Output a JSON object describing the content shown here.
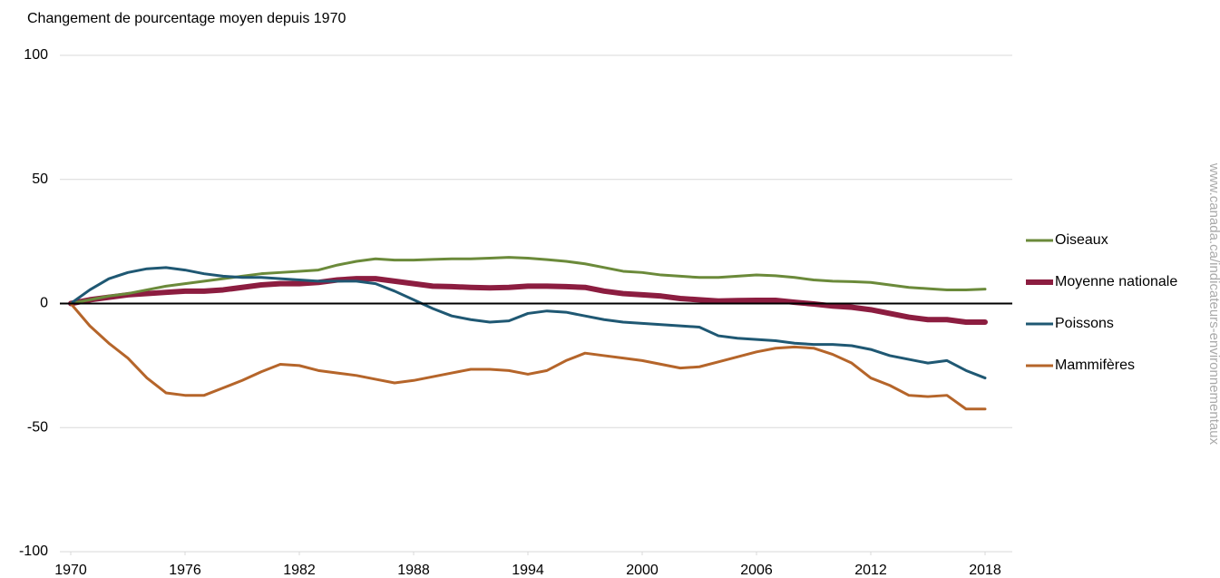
{
  "chart_data": {
    "type": "line",
    "title": "Changement de pourcentage moyen depuis 1970",
    "source": "www.canada.ca/indicateurs-environnementaux",
    "x": [
      1970,
      1971,
      1972,
      1973,
      1974,
      1975,
      1976,
      1977,
      1978,
      1979,
      1980,
      1981,
      1982,
      1983,
      1984,
      1985,
      1986,
      1987,
      1988,
      1989,
      1990,
      1991,
      1992,
      1993,
      1994,
      1995,
      1996,
      1997,
      1998,
      1999,
      2000,
      2001,
      2002,
      2003,
      2004,
      2005,
      2006,
      2007,
      2008,
      2009,
      2010,
      2011,
      2012,
      2013,
      2014,
      2015,
      2016,
      2017,
      2018
    ],
    "xlim": [
      1970,
      2018
    ],
    "xticks": [
      1970,
      1976,
      1982,
      1988,
      1994,
      2000,
      2006,
      2012,
      2018
    ],
    "ylim": [
      -100,
      100
    ],
    "yticks": [
      -100,
      -50,
      0,
      50,
      100
    ],
    "grid": true,
    "legend": "right",
    "series": [
      {
        "name": "Oiseaux",
        "color": "#6b8a3a",
        "line_width": 3,
        "values": [
          0,
          1.5,
          3,
          4,
          5.5,
          7,
          8,
          9,
          10,
          11,
          12,
          12.5,
          13,
          13.5,
          15.5,
          17,
          18,
          17.5,
          17.5,
          17.8,
          18,
          18,
          18.3,
          18.6,
          18.3,
          17.7,
          17,
          16,
          14.5,
          13,
          12.5,
          11.5,
          11,
          10.5,
          10.5,
          11,
          11.5,
          11.2,
          10.5,
          9.5,
          9,
          8.8,
          8.5,
          7.5,
          6.5,
          6,
          5.5,
          5.5,
          5.8
        ]
      },
      {
        "name": "Moyenne nationale",
        "color": "#8c1d40",
        "line_width": 6,
        "values": [
          0,
          1.5,
          2.5,
          3.5,
          4,
          4.5,
          5,
          5,
          5.5,
          6.5,
          7.5,
          8,
          8,
          8.5,
          9.5,
          10,
          10,
          9,
          8,
          7,
          6.8,
          6.5,
          6.3,
          6.5,
          7,
          7,
          6.8,
          6.5,
          5,
          4,
          3.5,
          3,
          2,
          1.5,
          1,
          1.2,
          1.3,
          1.3,
          0.5,
          -0.2,
          -1,
          -1.5,
          -2.5,
          -4,
          -5.5,
          -6.5,
          -6.5,
          -7.5,
          -7.5
        ]
      },
      {
        "name": "Poissons",
        "color": "#1f5873",
        "line_width": 3,
        "values": [
          0,
          5.5,
          10,
          12.5,
          14,
          14.5,
          13.5,
          12,
          11,
          10.5,
          10.5,
          10,
          9.5,
          9,
          9,
          9,
          8,
          5,
          1.5,
          -2,
          -5,
          -6.5,
          -7.5,
          -7,
          -4,
          -3,
          -3.5,
          -5,
          -6.5,
          -7.5,
          -8,
          -8.5,
          -9,
          -9.5,
          -13,
          -14,
          -14.5,
          -15,
          -16,
          -16.5,
          -16.5,
          -17,
          -18.5,
          -21,
          -22.5,
          -24,
          -23,
          -27,
          -30
        ]
      },
      {
        "name": "Mammifères",
        "color": "#b5652a",
        "line_width": 3,
        "values": [
          0,
          -9,
          -16,
          -22,
          -30,
          -36,
          -37,
          -37,
          -34,
          -31,
          -27.5,
          -24.5,
          -25,
          -27,
          -28,
          -29,
          -30.5,
          -32,
          -31,
          -29.5,
          -28,
          -26.5,
          -26.5,
          -27,
          -28.5,
          -27,
          -23,
          -20,
          -21,
          -22,
          -23,
          -24.5,
          -26,
          -25.5,
          -23.5,
          -21.5,
          -19.5,
          -18,
          -17.5,
          -18,
          -20.5,
          -24,
          -30,
          -33,
          -37,
          -37.5,
          -37,
          -42.5,
          -42.5
        ]
      }
    ]
  }
}
